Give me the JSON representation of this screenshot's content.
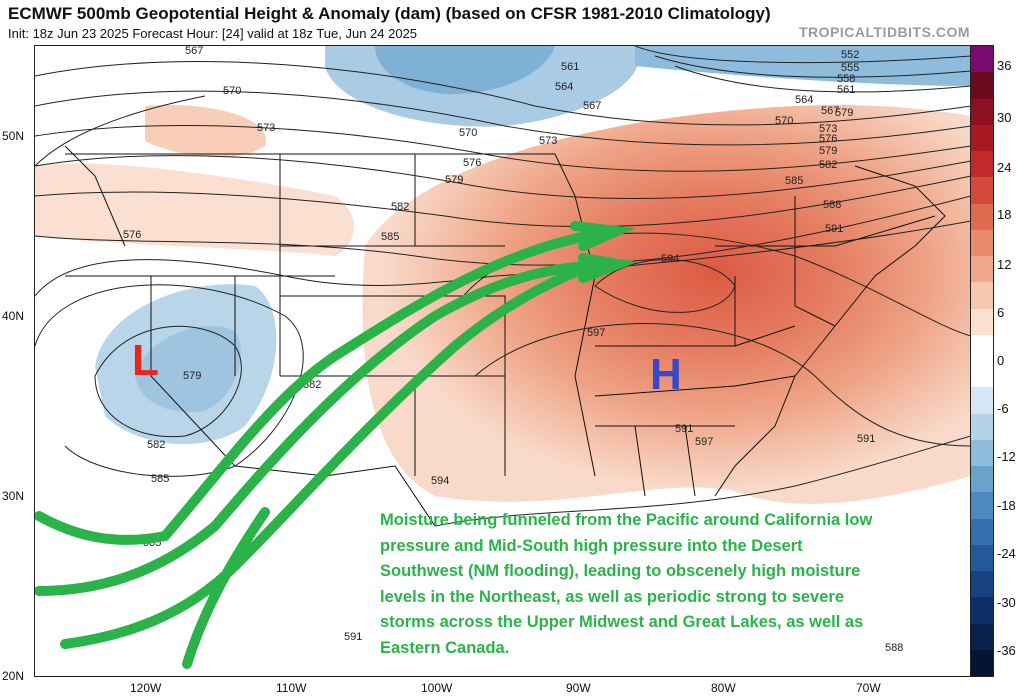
{
  "header": {
    "title": "ECMWF 500mb Geopotential Height & Anomaly (dam) (based on CFSR 1981-2010 Climatology)",
    "subtitle": "Init: 18z Jun 23 2025   Forecast Hour: [24]   valid at 18z Tue, Jun 24 2025",
    "credit": "TROPICALTIDBITS.COM"
  },
  "axes": {
    "lat_labels": [
      "50N",
      "40N",
      "30N",
      "20N"
    ],
    "lon_labels": [
      "120W",
      "110W",
      "100W",
      "90W",
      "80W",
      "70W"
    ]
  },
  "colorbar": {
    "labels": [
      "36",
      "30",
      "24",
      "18",
      "12",
      "6",
      "0",
      "-6",
      "-12",
      "-18",
      "-24",
      "-30",
      "-36"
    ],
    "colors": [
      "#7a0a6e",
      "#6b0a1a",
      "#8c1020",
      "#a81a22",
      "#c02a2a",
      "#d44a3a",
      "#e06a50",
      "#e98a6c",
      "#f0a88c",
      "#f6c6ae",
      "#fbe0d0",
      "#ffffff",
      "#ffffff",
      "#d6e6f2",
      "#b6d2e8",
      "#90bcdc",
      "#6aa2cc",
      "#4e8abf",
      "#3570ae",
      "#23589a",
      "#16427f",
      "#0c2f66",
      "#08204c",
      "#061434"
    ]
  },
  "contour_labels": [
    "567",
    "570",
    "573",
    "576",
    "579",
    "582",
    "585",
    "552",
    "555",
    "558",
    "561",
    "564",
    "567",
    "570",
    "573",
    "576",
    "579",
    "582",
    "585",
    "588",
    "591",
    "561",
    "564",
    "567",
    "570",
    "573",
    "576",
    "579",
    "582",
    "585",
    "594",
    "597",
    "591",
    "597",
    "594",
    "579",
    "582",
    "585",
    "588",
    "591"
  ],
  "markers": {
    "low": "L",
    "high": "H"
  },
  "annotation": "Moisture being funneled from the Pacific around California low pressure and Mid-South high pressure into the Desert Southwest (NM flooding), leading to obscenely high moisture levels in the Northeast, as well as periodic strong to severe storms across the Upper Midwest and Great Lakes, as well as Eastern Canada.",
  "colors": {
    "low_marker": "#e8251f",
    "high_marker": "#3a47c9",
    "arrows": "#2bb34a",
    "annotation_text": "#2bb34a"
  }
}
